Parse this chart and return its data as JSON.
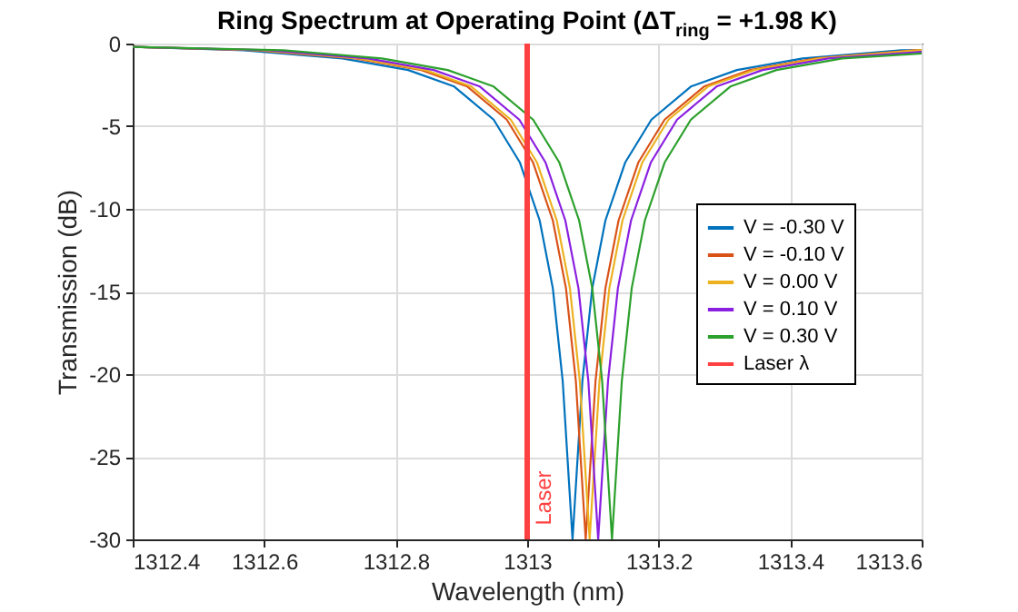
{
  "chart_data": {
    "type": "line",
    "title": "Ring Spectrum at Operating Point (ΔT$_{ring}$ = +1.98 K)",
    "xlabel": "Wavelength (nm)",
    "ylabel": "Transmission (dB)",
    "xlim": [
      1312.4,
      1313.6
    ],
    "xticks": [
      1312.4,
      1312.6,
      1312.8,
      1313,
      1313.2,
      1313.4,
      1313.6
    ],
    "ylim": [
      -30,
      0
    ],
    "yticks": [
      -30,
      -25,
      -20,
      -15,
      -10,
      -5,
      0
    ],
    "grid": true,
    "legend": "right",
    "series": [
      {
        "name": "V = -0.30 V",
        "color": "#0072bd",
        "x": [
          1312.4,
          1312.569,
          1312.719,
          1312.819,
          1312.889,
          1312.949,
          1312.989,
          1313.019,
          1313.039,
          1313.054,
          1313.069,
          1313.084,
          1313.099,
          1313.119,
          1313.149,
          1313.189,
          1313.249,
          1313.319,
          1313.419,
          1313.569,
          1313.6
        ],
        "values": [
          -0.2,
          -0.4,
          -0.9,
          -1.6,
          -2.6,
          -4.6,
          -7.2,
          -10.7,
          -14.8,
          -20.4,
          -30,
          -20.4,
          -14.8,
          -10.7,
          -7.2,
          -4.6,
          -2.6,
          -1.6,
          -0.9,
          -0.4,
          -0.4
        ]
      },
      {
        "name": "V = -0.10 V",
        "color": "#d95319",
        "x": [
          1312.4,
          1312.589,
          1312.739,
          1312.839,
          1312.909,
          1312.969,
          1313.009,
          1313.039,
          1313.059,
          1313.074,
          1313.089,
          1313.104,
          1313.119,
          1313.139,
          1313.169,
          1313.209,
          1313.269,
          1313.339,
          1313.439,
          1313.589,
          1313.6
        ],
        "values": [
          -0.2,
          -0.4,
          -0.9,
          -1.6,
          -2.6,
          -4.6,
          -7.2,
          -10.7,
          -14.8,
          -20.4,
          -30,
          -20.4,
          -14.8,
          -10.7,
          -7.2,
          -4.6,
          -2.6,
          -1.6,
          -0.9,
          -0.4,
          -0.4
        ]
      },
      {
        "name": "V = 0.00 V",
        "color": "#edb120",
        "x": [
          1312.4,
          1312.595,
          1312.745,
          1312.845,
          1312.915,
          1312.975,
          1313.015,
          1313.045,
          1313.065,
          1313.08,
          1313.095,
          1313.11,
          1313.125,
          1313.145,
          1313.175,
          1313.215,
          1313.275,
          1313.345,
          1313.445,
          1313.595,
          1313.6
        ],
        "values": [
          -0.2,
          -0.4,
          -0.9,
          -1.6,
          -2.6,
          -4.6,
          -7.2,
          -10.7,
          -14.8,
          -20.4,
          -30,
          -20.4,
          -14.8,
          -10.7,
          -7.2,
          -4.6,
          -2.6,
          -1.6,
          -0.9,
          -0.4,
          -0.4
        ]
      },
      {
        "name": "V = 0.10 V",
        "color": "#8a1fe0",
        "x": [
          1312.4,
          1312.608,
          1312.758,
          1312.858,
          1312.928,
          1312.988,
          1313.028,
          1313.058,
          1313.078,
          1313.093,
          1313.108,
          1313.123,
          1313.138,
          1313.158,
          1313.188,
          1313.228,
          1313.288,
          1313.358,
          1313.458,
          1313.6
        ],
        "values": [
          -0.2,
          -0.4,
          -0.9,
          -1.6,
          -2.6,
          -4.6,
          -7.2,
          -10.7,
          -14.8,
          -20.4,
          -30,
          -20.4,
          -14.8,
          -10.7,
          -7.2,
          -4.6,
          -2.6,
          -1.6,
          -0.9,
          -0.5
        ]
      },
      {
        "name": "V = 0.30 V",
        "color": "#2ca02c",
        "x": [
          1312.4,
          1312.629,
          1312.779,
          1312.879,
          1312.949,
          1313.009,
          1313.049,
          1313.079,
          1313.099,
          1313.114,
          1313.129,
          1313.144,
          1313.159,
          1313.179,
          1313.209,
          1313.249,
          1313.309,
          1313.379,
          1313.479,
          1313.6
        ],
        "values": [
          -0.2,
          -0.4,
          -0.9,
          -1.6,
          -2.6,
          -4.6,
          -7.2,
          -10.7,
          -14.8,
          -20.4,
          -30,
          -20.4,
          -14.8,
          -10.7,
          -7.2,
          -4.6,
          -2.6,
          -1.6,
          -0.9,
          -0.6
        ]
      },
      {
        "name": "Laser λ",
        "color": "#ff4040",
        "x": [
          1313,
          1313
        ],
        "values": [
          0,
          -30
        ]
      }
    ],
    "annotations": [
      {
        "text": "Laser",
        "x": 1313,
        "y": -27.5
      }
    ]
  }
}
